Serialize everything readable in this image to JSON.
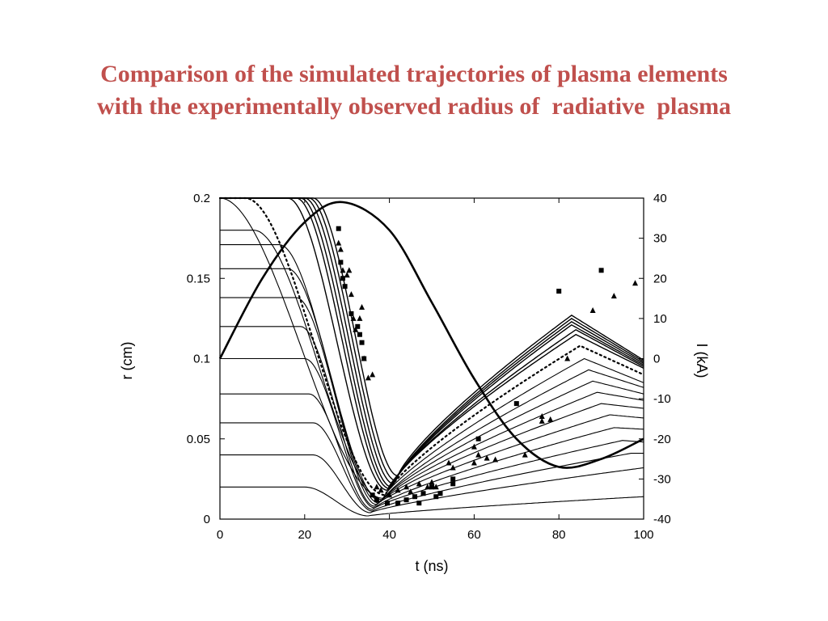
{
  "title": {
    "line1": "Comparison of the simulated trajectories of plasma elements",
    "line2": "with the experimentally observed radius of  radiative  plasma"
  },
  "chart_data": {
    "type": "line",
    "xlabel": "t  (ns)",
    "ylabel": "r  (cm)",
    "y2label": "I  (kA)",
    "xlim": [
      0,
      100
    ],
    "ylim": [
      0,
      0.2
    ],
    "y2lim": [
      -40,
      40
    ],
    "xticks": [
      "0",
      "20",
      "40",
      "60",
      "80",
      "100"
    ],
    "yticks": [
      "0",
      "0.05",
      "0.1",
      "0.15",
      "0.2"
    ],
    "y2ticks": [
      "-40",
      "-30",
      "-20",
      "-10",
      "0",
      "10",
      "20",
      "30",
      "40"
    ],
    "grid": false,
    "current": {
      "x": [
        0,
        10,
        20,
        29,
        40,
        50,
        60,
        70,
        80,
        90,
        100
      ],
      "y": [
        0,
        20,
        34,
        39,
        32,
        14,
        -5,
        -20,
        -27,
        -25,
        -20
      ]
    },
    "outer_trajectories": [
      {
        "r0": 0.2,
        "tf": 22,
        "tmin": 42,
        "rmin": 0.027,
        "tpeak": 83,
        "rpeak": 0.127,
        "rend": 0.099
      },
      {
        "r0": 0.2,
        "tf": 21,
        "tmin": 41.5,
        "rmin": 0.024,
        "tpeak": 83,
        "rpeak": 0.125,
        "rend": 0.098
      },
      {
        "r0": 0.2,
        "tf": 20,
        "tmin": 41,
        "rmin": 0.022,
        "tpeak": 83,
        "rpeak": 0.123,
        "rend": 0.097
      },
      {
        "r0": 0.2,
        "tf": 19,
        "tmin": 40.5,
        "rmin": 0.02,
        "tpeak": 83,
        "rpeak": 0.121,
        "rend": 0.096
      },
      {
        "r0": 0.2,
        "tf": 18,
        "tmin": 40,
        "rmin": 0.019,
        "tpeak": 84,
        "rpeak": 0.118,
        "rend": 0.095
      },
      {
        "r0": 0.2,
        "tf": 16,
        "tmin": 39.5,
        "rmin": 0.018,
        "tpeak": 84,
        "rpeak": 0.115,
        "rend": 0.094
      }
    ],
    "dotted_trajectory": {
      "r0": 0.2,
      "tf": 6,
      "tmin": 39,
      "rmin": 0.015,
      "tpeak": 85,
      "rpeak": 0.108,
      "rend": 0.09
    },
    "inner_trajectories": [
      {
        "r0": 0.2,
        "tf": 0,
        "tmin": 38.5,
        "rmin": 0.013,
        "tpeak": 86,
        "rpeak": 0.1,
        "rend": 0.085
      },
      {
        "r0": 0.18,
        "tf": 8,
        "tmin": 38.5,
        "rmin": 0.012,
        "tpeak": 87,
        "rpeak": 0.093,
        "rend": 0.082
      },
      {
        "r0": 0.171,
        "tf": 14,
        "tmin": 38,
        "rmin": 0.011,
        "tpeak": 88,
        "rpeak": 0.086,
        "rend": 0.078
      },
      {
        "r0": 0.156,
        "tf": 16,
        "tmin": 37.5,
        "rmin": 0.01,
        "tpeak": 89,
        "rpeak": 0.079,
        "rend": 0.074
      },
      {
        "r0": 0.138,
        "tf": 18,
        "tmin": 37,
        "rmin": 0.009,
        "tpeak": 90,
        "rpeak": 0.072,
        "rend": 0.069
      },
      {
        "r0": 0.12,
        "tf": 19,
        "tmin": 36.5,
        "rmin": 0.008,
        "tpeak": 92,
        "rpeak": 0.065,
        "rend": 0.063
      },
      {
        "r0": 0.1,
        "tf": 20,
        "tmin": 36.5,
        "rmin": 0.007,
        "tpeak": 93,
        "rpeak": 0.057,
        "rend": 0.056
      },
      {
        "r0": 0.078,
        "tf": 21,
        "tmin": 36,
        "rmin": 0.006,
        "tpeak": 95,
        "rpeak": 0.049,
        "rend": 0.048
      },
      {
        "r0": 0.06,
        "tf": 22,
        "tmin": 36,
        "rmin": 0.005,
        "tpeak": 97,
        "rpeak": 0.041,
        "rend": 0.041
      },
      {
        "r0": 0.04,
        "tf": 22,
        "tmin": 35.5,
        "rmin": 0.004,
        "tpeak": 100,
        "rpeak": 0.032,
        "rend": 0.032
      },
      {
        "r0": 0.02,
        "tf": 20,
        "tmin": 35,
        "rmin": 0.002,
        "tpeak": 100,
        "rpeak": 0.014,
        "rend": 0.014
      }
    ],
    "squares": [
      [
        28,
        0.181
      ],
      [
        28.5,
        0.16
      ],
      [
        29,
        0.15
      ],
      [
        29.5,
        0.145
      ],
      [
        31,
        0.128
      ],
      [
        32.5,
        0.12
      ],
      [
        33,
        0.115
      ],
      [
        33.5,
        0.11
      ],
      [
        34,
        0.1
      ],
      [
        36,
        0.015
      ],
      [
        37,
        0.012
      ],
      [
        39.5,
        0.01
      ],
      [
        42,
        0.01
      ],
      [
        44,
        0.012
      ],
      [
        46,
        0.014
      ],
      [
        47,
        0.01
      ],
      [
        48,
        0.016
      ],
      [
        50,
        0.02
      ],
      [
        51,
        0.014
      ],
      [
        52,
        0.016
      ],
      [
        55,
        0.022
      ],
      [
        55,
        0.025
      ],
      [
        61,
        0.05
      ],
      [
        70,
        0.072
      ],
      [
        80,
        0.142
      ],
      [
        90,
        0.155
      ]
    ],
    "triangles": [
      [
        28,
        0.172
      ],
      [
        28.5,
        0.168
      ],
      [
        29,
        0.155
      ],
      [
        30,
        0.152
      ],
      [
        30.5,
        0.155
      ],
      [
        31,
        0.14
      ],
      [
        31.5,
        0.125
      ],
      [
        32,
        0.118
      ],
      [
        33,
        0.125
      ],
      [
        33.5,
        0.132
      ],
      [
        34,
        0.1
      ],
      [
        35,
        0.088
      ],
      [
        36,
        0.09
      ],
      [
        37,
        0.02
      ],
      [
        38,
        0.018
      ],
      [
        40,
        0.015
      ],
      [
        42,
        0.018
      ],
      [
        44,
        0.02
      ],
      [
        45,
        0.017
      ],
      [
        47,
        0.022
      ],
      [
        49,
        0.02
      ],
      [
        50,
        0.023
      ],
      [
        51,
        0.02
      ],
      [
        54,
        0.035
      ],
      [
        55,
        0.032
      ],
      [
        60,
        0.045
      ],
      [
        60,
        0.035
      ],
      [
        61,
        0.04
      ],
      [
        63,
        0.038
      ],
      [
        65,
        0.037
      ],
      [
        72,
        0.04
      ],
      [
        76,
        0.064
      ],
      [
        76,
        0.061
      ],
      [
        78,
        0.062
      ],
      [
        82,
        0.1
      ],
      [
        88,
        0.13
      ],
      [
        93,
        0.139
      ],
      [
        98,
        0.147
      ]
    ]
  }
}
